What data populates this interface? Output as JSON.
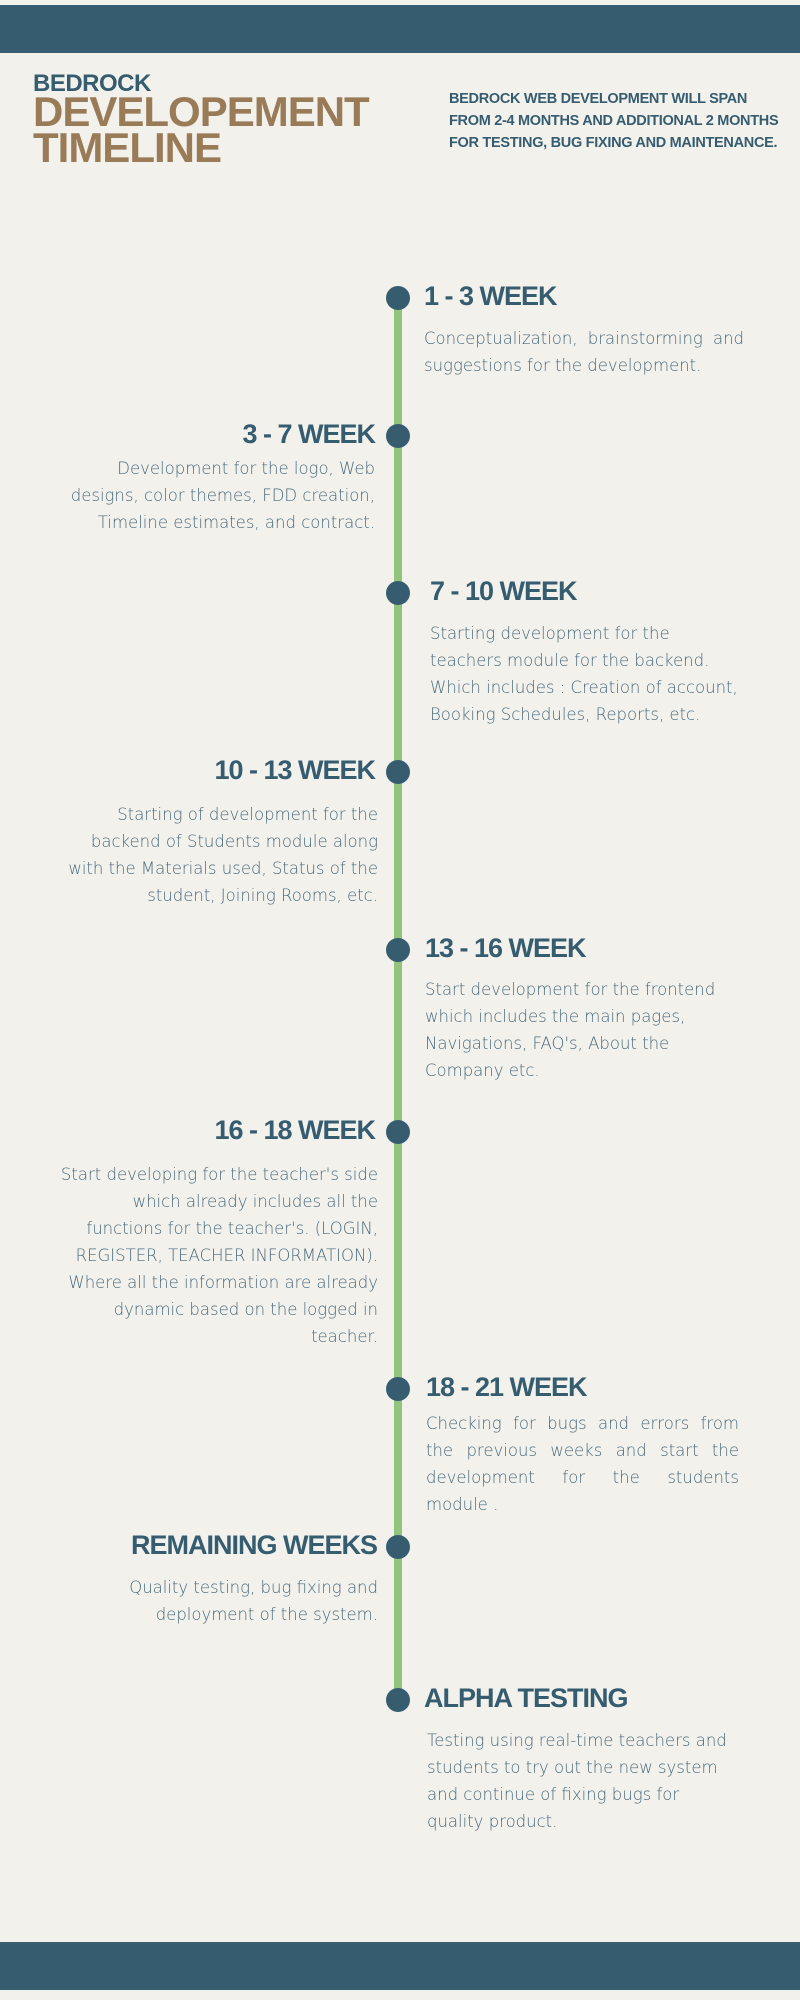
{
  "header": {
    "brand": "BEDROCK",
    "title": "DEVELOPEMENT TIMELINE",
    "intro": "BEDROCK WEB DEVELOPMENT WILL SPAN FROM 2-4 MONTHS AND ADDITIONAL 2 MONTHS FOR TESTING, BUG FIXING AND MAINTENANCE."
  },
  "milestones": [
    {
      "period": "1 - 3 WEEK",
      "description": "Conceptualization, brainstorming and suggestions for the development."
    },
    {
      "period": "3 - 7 WEEK",
      "description": "Development for the logo, Web designs, color themes, FDD creation, Timeline estimates,  and contract."
    },
    {
      "period": "7 - 10 WEEK",
      "description": "Starting development for the teachers module for the backend. Which includes : Creation of account, Booking Schedules, Reports, etc."
    },
    {
      "period": "10 - 13 WEEK",
      "description": "Starting of development for the backend of Students module along with the Materials used, Status of the student, Joining Rooms, etc."
    },
    {
      "period": "13 - 16 WEEK",
      "description": "Start development for the frontend which includes the main pages, Navigations,  FAQ's, About the Company etc."
    },
    {
      "period": "16 - 18 WEEK",
      "description": "Start developing for the teacher's side which already includes all the functions for the teacher's. (LOGIN, REGISTER, TEACHER INFORMATION). Where all the information are already dynamic based on the logged in teacher."
    },
    {
      "period": "18 - 21 WEEK",
      "description": "Checking for bugs and errors from the previous weeks and start the development for the students module ."
    },
    {
      "period": "REMAINING WEEKS",
      "description": "Quality testing, bug fixing and deployment of the system."
    },
    {
      "period": "ALPHA TESTING",
      "description": "Testing using real-time teachers and students to try out the new system and continue of fixing bugs  for quality product."
    }
  ]
}
